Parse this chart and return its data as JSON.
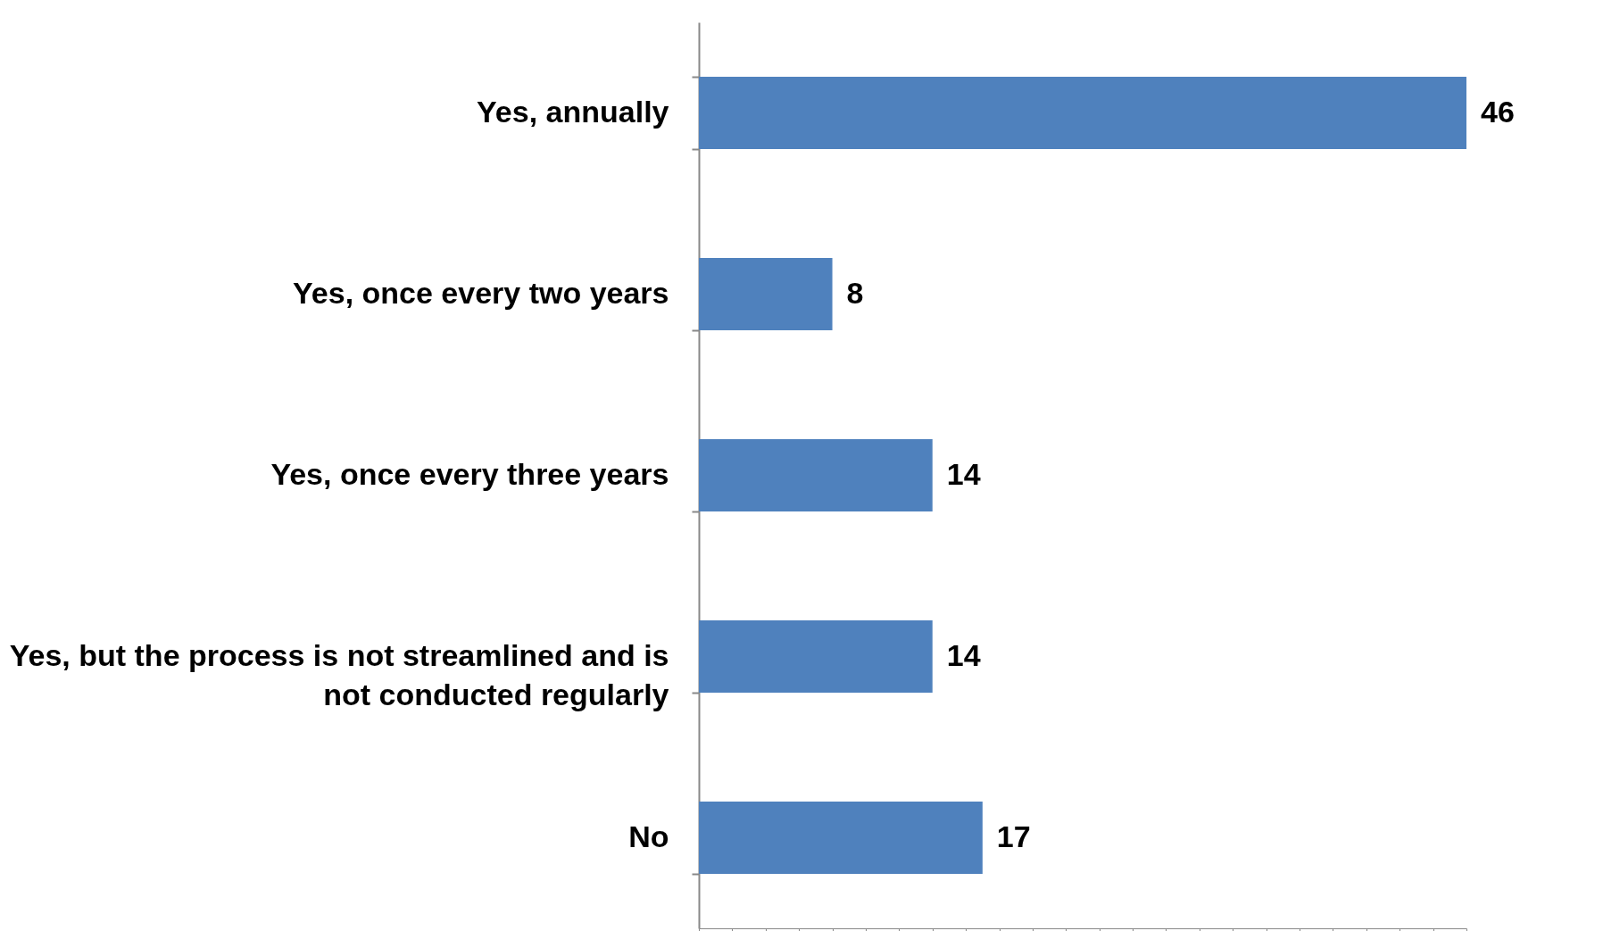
{
  "chart_data": {
    "type": "bar",
    "orientation": "horizontal",
    "categories": [
      "Yes, annually",
      "Yes, once every two years",
      "Yes, once every three years",
      "Yes, but the process is not streamlined and is not conducted regularly",
      "No"
    ],
    "values": [
      46,
      8,
      14,
      14,
      17
    ],
    "color": "#4f81bd",
    "data_labels": true,
    "grid": false
  }
}
